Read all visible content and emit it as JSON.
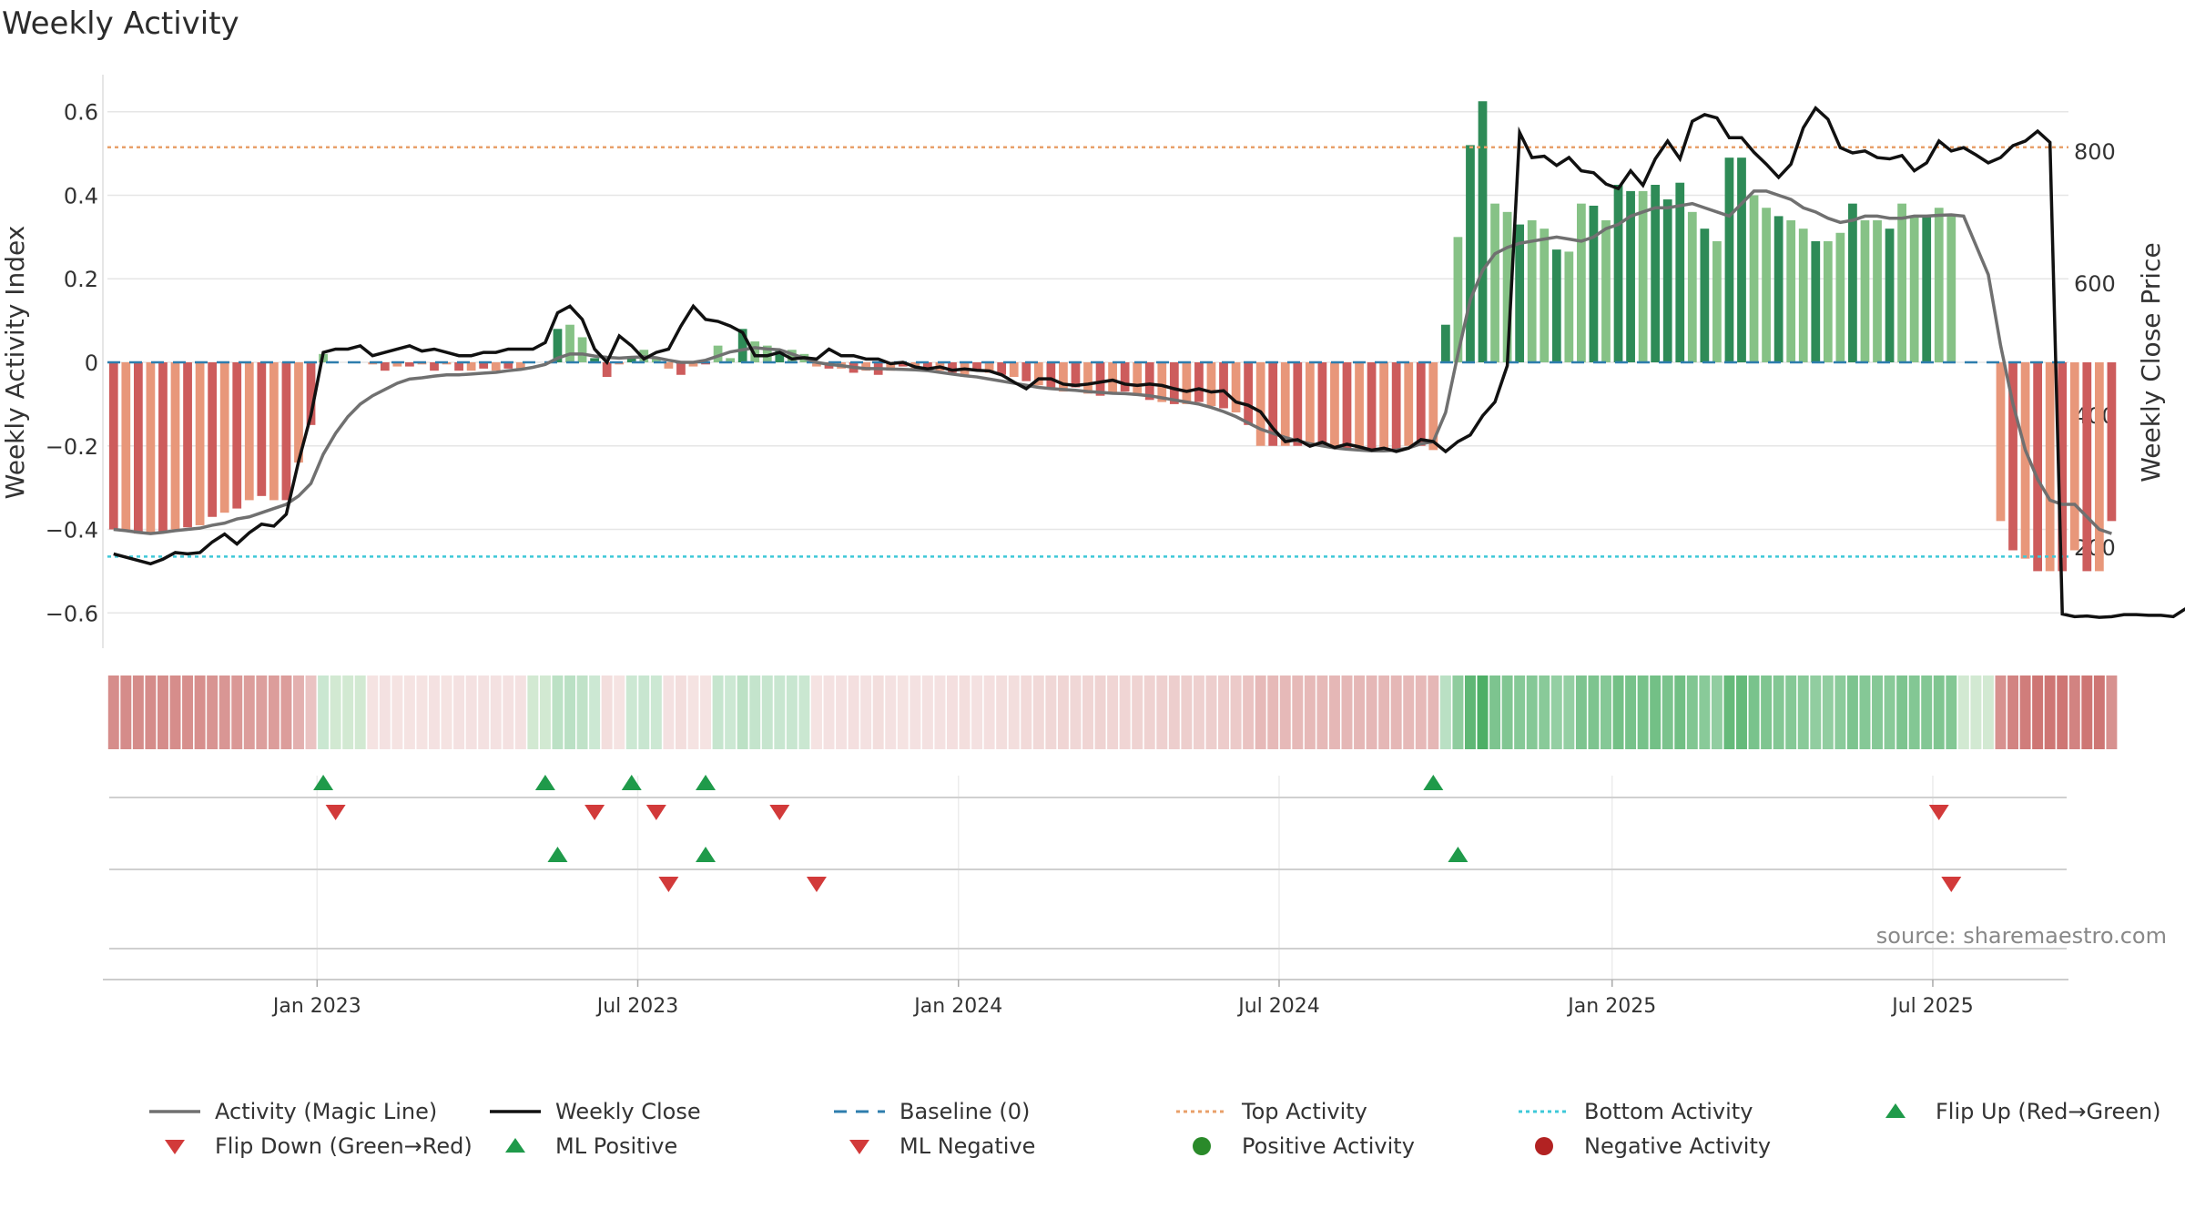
{
  "chart_data": {
    "type": "bar",
    "title": "Weekly Activity",
    "ylabel": "Weekly Activity Index",
    "y2label": "Weekly Close Price",
    "ylim": [
      -0.68,
      0.68
    ],
    "y2lim": [
      50,
      910
    ],
    "y_ticks": [
      0.6,
      0.4,
      0.2,
      0,
      -0.2,
      -0.4,
      -0.6
    ],
    "y_tick_labels": [
      "0.6",
      "0.4",
      "0.2",
      "0",
      "−0.2",
      "−0.4",
      "−0.6"
    ],
    "y2_ticks": [
      800,
      600,
      400,
      200
    ],
    "y2_tick_labels": [
      "800",
      "600",
      "400",
      "200"
    ],
    "x_ticks": [
      {
        "label": "Jan 2023",
        "week": 17
      },
      {
        "label": "Jul 2023",
        "week": 43
      },
      {
        "label": "Jan 2024",
        "week": 69
      },
      {
        "label": "Jul 2024",
        "week": 95
      },
      {
        "label": "Jan 2025",
        "week": 122
      },
      {
        "label": "Jul 2025",
        "week": 148
      }
    ],
    "weeks": 159,
    "top_activity": 0.515,
    "bottom_activity": -0.465,
    "baseline": 0,
    "activity": [
      -0.4,
      -0.405,
      -0.41,
      -0.41,
      -0.405,
      -0.4,
      -0.395,
      -0.39,
      -0.37,
      -0.36,
      -0.35,
      -0.33,
      -0.32,
      -0.33,
      -0.33,
      -0.24,
      -0.15,
      0.02,
      0,
      0,
      0,
      -0.005,
      -0.02,
      -0.01,
      -0.01,
      -0.005,
      -0.02,
      -0.005,
      -0.02,
      -0.02,
      -0.015,
      -0.02,
      -0.015,
      -0.015,
      0,
      0,
      0.08,
      0.09,
      0.06,
      0.01,
      -0.035,
      -0.005,
      0.01,
      0.03,
      0.01,
      -0.015,
      -0.03,
      -0.01,
      -0.005,
      0.04,
      0.01,
      0.08,
      0.05,
      0.04,
      0.03,
      0.03,
      0.02,
      -0.01,
      -0.015,
      -0.015,
      -0.025,
      -0.02,
      -0.03,
      -0.02,
      -0.01,
      -0.015,
      -0.015,
      -0.02,
      -0.025,
      -0.035,
      -0.02,
      -0.025,
      -0.03,
      -0.035,
      -0.045,
      -0.055,
      -0.065,
      -0.07,
      -0.06,
      -0.075,
      -0.08,
      -0.075,
      -0.07,
      -0.08,
      -0.09,
      -0.095,
      -0.1,
      -0.1,
      -0.095,
      -0.105,
      -0.11,
      -0.12,
      -0.15,
      -0.2,
      -0.2,
      -0.2,
      -0.2,
      -0.2,
      -0.2,
      -0.205,
      -0.21,
      -0.21,
      -0.21,
      -0.21,
      -0.21,
      -0.2,
      -0.2,
      -0.21,
      0.09,
      0.3,
      0.52,
      0.625,
      0.38,
      0.36,
      0.33,
      0.34,
      0.32,
      0.27,
      0.265,
      0.38,
      0.375,
      0.34,
      0.425,
      0.41,
      0.41,
      0.425,
      0.39,
      0.43,
      0.36,
      0.32,
      0.29,
      0.49,
      0.49,
      0.4,
      0.37,
      0.35,
      0.34,
      0.32,
      0.29,
      0.29,
      0.31,
      0.38,
      0.34,
      0.34,
      0.32,
      0.38,
      0.35,
      0.35,
      0.37,
      0.35,
      0,
      0,
      0,
      -0.38,
      -0.45,
      -0.47,
      -0.5,
      -0.5,
      -0.5,
      -0.45,
      -0.5,
      -0.5,
      -0.38
    ],
    "magic_line": [
      -0.4,
      -0.403,
      -0.407,
      -0.41,
      -0.407,
      -0.403,
      -0.4,
      -0.397,
      -0.39,
      -0.385,
      -0.375,
      -0.37,
      -0.36,
      -0.35,
      -0.34,
      -0.32,
      -0.29,
      -0.22,
      -0.17,
      -0.13,
      -0.1,
      -0.08,
      -0.065,
      -0.05,
      -0.04,
      -0.037,
      -0.033,
      -0.03,
      -0.03,
      -0.028,
      -0.026,
      -0.024,
      -0.02,
      -0.017,
      -0.012,
      -0.005,
      0.01,
      0.02,
      0.02,
      0.015,
      0.012,
      0.01,
      0.012,
      0.013,
      0.011,
      0.005,
      0,
      0,
      0.005,
      0.015,
      0.025,
      0.03,
      0.035,
      0.032,
      0.03,
      0.02,
      0.01,
      0,
      -0.005,
      -0.008,
      -0.012,
      -0.015,
      -0.015,
      -0.016,
      -0.017,
      -0.018,
      -0.02,
      -0.024,
      -0.028,
      -0.032,
      -0.035,
      -0.04,
      -0.045,
      -0.05,
      -0.055,
      -0.06,
      -0.063,
      -0.065,
      -0.067,
      -0.07,
      -0.072,
      -0.074,
      -0.075,
      -0.077,
      -0.08,
      -0.085,
      -0.09,
      -0.095,
      -0.1,
      -0.108,
      -0.118,
      -0.13,
      -0.145,
      -0.16,
      -0.17,
      -0.18,
      -0.188,
      -0.195,
      -0.2,
      -0.205,
      -0.208,
      -0.21,
      -0.212,
      -0.212,
      -0.21,
      -0.205,
      -0.195,
      -0.19,
      -0.12,
      0.02,
      0.15,
      0.22,
      0.26,
      0.275,
      0.285,
      0.29,
      0.295,
      0.3,
      0.295,
      0.29,
      0.3,
      0.32,
      0.33,
      0.35,
      0.36,
      0.37,
      0.37,
      0.375,
      0.38,
      0.37,
      0.36,
      0.35,
      0.38,
      0.41,
      0.41,
      0.4,
      0.39,
      0.37,
      0.36,
      0.345,
      0.335,
      0.34,
      0.35,
      0.35,
      0.345,
      0.345,
      0.35,
      0.35,
      0.352,
      0.353,
      0.35,
      0.28,
      0.21,
      0.04,
      -0.1,
      -0.21,
      -0.28,
      -0.33,
      -0.34,
      -0.34,
      -0.37,
      -0.4,
      -0.41
    ],
    "weekly_close": [
      190,
      185,
      180,
      175,
      182,
      192,
      190,
      192,
      208,
      220,
      205,
      222,
      235,
      232,
      250,
      330,
      400,
      495,
      500,
      500,
      505,
      490,
      495,
      500,
      505,
      497,
      500,
      495,
      490,
      490,
      495,
      495,
      500,
      500,
      500,
      510,
      555,
      565,
      545,
      500,
      480,
      520,
      505,
      485,
      495,
      500,
      535,
      565,
      545,
      542,
      535,
      525,
      490,
      490,
      495,
      485,
      487,
      485,
      500,
      490,
      490,
      485,
      485,
      478,
      480,
      473,
      470,
      473,
      468,
      470,
      468,
      467,
      461,
      450,
      440,
      455,
      455,
      447,
      445,
      447,
      450,
      453,
      447,
      445,
      447,
      445,
      440,
      436,
      440,
      435,
      437,
      420,
      415,
      405,
      380,
      360,
      363,
      353,
      359,
      351,
      356,
      352,
      347,
      350,
      345,
      350,
      363,
      360,
      345,
      360,
      370,
      399,
      420,
      475,
      828,
      790,
      792,
      778,
      790,
      770,
      767,
      750,
      743,
      770,
      748,
      788,
      815,
      788,
      845,
      855,
      850,
      820,
      820,
      798,
      780,
      760,
      780,
      835,
      865,
      848,
      805,
      797,
      800,
      790,
      788,
      793,
      770,
      782,
      815,
      800,
      805,
      794,
      782,
      790,
      808,
      815,
      830,
      813,
      99,
      95,
      96,
      94,
      95,
      98,
      98,
      97,
      97,
      95,
      107
    ],
    "legend": [
      {
        "label": "Activity (Magic Line)",
        "kind": "line",
        "color": "#707070"
      },
      {
        "label": "Weekly Close",
        "kind": "line",
        "color": "#111111"
      },
      {
        "label": "Baseline (0)",
        "kind": "dash",
        "color": "#2e7dad"
      },
      {
        "label": "Top Activity",
        "kind": "dot",
        "color": "#e8a06a"
      },
      {
        "label": "Bottom Activity",
        "kind": "dot",
        "color": "#3ec8d8"
      },
      {
        "label": "Flip Up (Red→Green)",
        "kind": "tri-up",
        "color": "#1f9a4a"
      },
      {
        "label": "Flip Down (Green→Red)",
        "kind": "tri-down",
        "color": "#d23a3a"
      },
      {
        "label": "ML Positive",
        "kind": "tri-up",
        "color": "#1f9a4a"
      },
      {
        "label": "ML Negative",
        "kind": "tri-down",
        "color": "#d23a3a"
      },
      {
        "label": "Positive Activity",
        "kind": "circle",
        "color": "#2a8a2a"
      },
      {
        "label": "Negative Activity",
        "kind": "circle",
        "color": "#b22222"
      }
    ],
    "flip_up": [
      17,
      35,
      42,
      48,
      107
    ],
    "flip_down": [
      18,
      39,
      44,
      54,
      148
    ],
    "ml_positive": [
      36,
      48,
      109
    ],
    "ml_negative": [
      45,
      57,
      149
    ]
  },
  "source": "source: sharemaestro.com",
  "colors": {
    "pos_strong": "#2e8b57",
    "pos_light": "#86c286",
    "neg_strong": "#cd5c5c",
    "neg_light": "#e8977a",
    "grid": "#e6e6e6"
  }
}
